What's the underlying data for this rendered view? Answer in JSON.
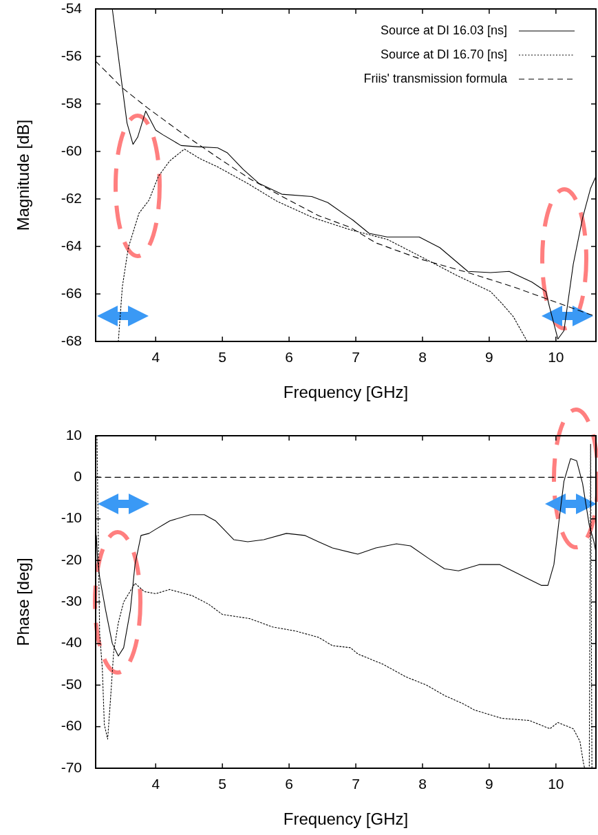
{
  "chart_data": [
    {
      "type": "line",
      "xlabel": "Frequency [GHz]",
      "ylabel": "Magnitude [dB]",
      "xlim": [
        3.1,
        10.6
      ],
      "ylim": [
        -68,
        -54
      ],
      "xticks": [
        4,
        5,
        6,
        7,
        8,
        9,
        10
      ],
      "yticks": [
        -68,
        -66,
        -64,
        -62,
        -60,
        -58,
        -56,
        -54
      ],
      "legend": "top right",
      "series": [
        {
          "name": "Source at DI 16.03 [ns]",
          "color": "#000000",
          "line_style": "solid",
          "x": [
            3.35,
            3.5,
            3.57,
            3.66,
            3.73,
            3.85,
            4.0,
            4.11,
            4.38,
            4.62,
            4.93,
            5.07,
            5.31,
            5.55,
            5.89,
            6.34,
            6.58,
            6.96,
            7.2,
            7.47,
            7.95,
            8.26,
            8.68,
            9.02,
            9.3,
            9.64,
            9.85,
            9.9,
            10.03,
            10.12,
            10.26,
            10.4,
            10.52,
            10.6
          ],
          "values": [
            -54,
            -57.3,
            -58.8,
            -59.7,
            -59.4,
            -58.3,
            -59.1,
            -59.3,
            -59.75,
            -59.8,
            -59.85,
            -60.05,
            -60.75,
            -61.35,
            -61.8,
            -61.9,
            -62.15,
            -62.9,
            -63.45,
            -63.6,
            -63.6,
            -64.05,
            -65.05,
            -65.1,
            -65.05,
            -65.5,
            -65.9,
            -66.5,
            -67.9,
            -67.55,
            -64.75,
            -62.8,
            -61.55,
            -61.05
          ]
        },
        {
          "name": "Source at DI 16.70 [ns]",
          "color": "#000000",
          "line_style": "dotted",
          "x": [
            3.44,
            3.5,
            3.59,
            3.75,
            3.9,
            4.04,
            4.21,
            4.43,
            4.66,
            4.93,
            5.38,
            5.82,
            6.37,
            6.92,
            7.47,
            7.99,
            8.5,
            9.02,
            9.19,
            9.36,
            9.55,
            9.57
          ],
          "values": [
            -68,
            -65.7,
            -64.05,
            -62.6,
            -62.05,
            -61.05,
            -60.4,
            -59.9,
            -60.3,
            -60.65,
            -61.35,
            -62.1,
            -62.8,
            -63.3,
            -63.7,
            -64.45,
            -65.2,
            -65.9,
            -66.4,
            -66.95,
            -67.9,
            -68
          ]
        },
        {
          "name": "Friis' transmission formula",
          "color": "#000000",
          "line_style": "dashed",
          "x": [
            3.1,
            3.49,
            3.87,
            4.38,
            4.9,
            5.41,
            5.93,
            6.44,
            6.92,
            7.3,
            7.99,
            8.68,
            9.36,
            10.05,
            10.6
          ],
          "values": [
            -56.2,
            -57.3,
            -58.15,
            -59.2,
            -60.2,
            -61.15,
            -61.95,
            -62.7,
            -63.2,
            -63.85,
            -64.55,
            -65.1,
            -65.7,
            -66.4,
            -66.95
          ]
        }
      ]
    },
    {
      "type": "line",
      "xlabel": "Frequency [GHz]",
      "ylabel": "Phase [deg]",
      "xlim": [
        3.1,
        10.6
      ],
      "ylim": [
        -70,
        10
      ],
      "xticks": [
        4,
        5,
        6,
        7,
        8,
        9,
        10
      ],
      "yticks": [
        -70,
        -60,
        -50,
        -40,
        -30,
        -20,
        -10,
        0,
        10
      ],
      "series": [
        {
          "color": "#000000",
          "line_style": "solid",
          "x": [
            3.11,
            3.13,
            3.16,
            3.25,
            3.35,
            3.44,
            3.52,
            3.62,
            3.69,
            3.78,
            3.9,
            4.0,
            4.21,
            4.52,
            4.73,
            4.9,
            5.17,
            5.38,
            5.62,
            5.96,
            6.24,
            6.44,
            6.65,
            7.03,
            7.3,
            7.61,
            7.82,
            8.09,
            8.33,
            8.54,
            8.85,
            9.16,
            9.47,
            9.78,
            9.88,
            9.97,
            10.05,
            10.12,
            10.22,
            10.31,
            10.4,
            10.5,
            10.57,
            10.6
          ],
          "values": [
            -14,
            -20,
            -24,
            -32,
            -40,
            -43,
            -41,
            -32,
            -21,
            -14,
            -13.5,
            -12.5,
            -10.5,
            -9,
            -9,
            -10.5,
            -15,
            -15.5,
            -15,
            -13.5,
            -14,
            -15.5,
            -17,
            -18.5,
            -17,
            -16,
            -16.5,
            -19.5,
            -22,
            -22.5,
            -21,
            -21,
            -23.5,
            -26,
            -26,
            -21,
            -10,
            -1,
            4.5,
            4,
            -1.5,
            -11.5,
            -15.5,
            -18
          ]
        },
        {
          "color": "#000000",
          "line_style": "dotted",
          "x": [
            3.12,
            3.14,
            3.16,
            3.2,
            3.23,
            3.28,
            3.32,
            3.37,
            3.44,
            3.52,
            3.69,
            3.83,
            4.0,
            4.21,
            4.55,
            4.79,
            5.0,
            5.41,
            5.75,
            6.1,
            6.44,
            6.65,
            6.92,
            7.03,
            7.41,
            7.75,
            8.06,
            8.33,
            8.61,
            8.78,
            9.19,
            9.6,
            9.91,
            10.03,
            10.26,
            10.36,
            10.41,
            10.43,
            10.5,
            10.52,
            10.54
          ],
          "values": [
            10,
            -15,
            -37.5,
            -46,
            -59.5,
            -63,
            -54,
            -42,
            -35,
            -30,
            -25.5,
            -27.5,
            -28,
            -27,
            -28.5,
            -30.5,
            -33,
            -34,
            -36,
            -37,
            -38.5,
            -40.5,
            -41,
            -42.5,
            -45,
            -48,
            -50,
            -52.5,
            -54.5,
            -56,
            -58,
            -58.5,
            -60.5,
            -59,
            -60.5,
            -63.5,
            -68.5,
            -70,
            -70,
            8,
            -70
          ]
        },
        {
          "color": "#000000",
          "line_style": "dashed",
          "x": [
            3.1,
            10.6
          ],
          "values": [
            0,
            0
          ]
        }
      ]
    }
  ]
}
